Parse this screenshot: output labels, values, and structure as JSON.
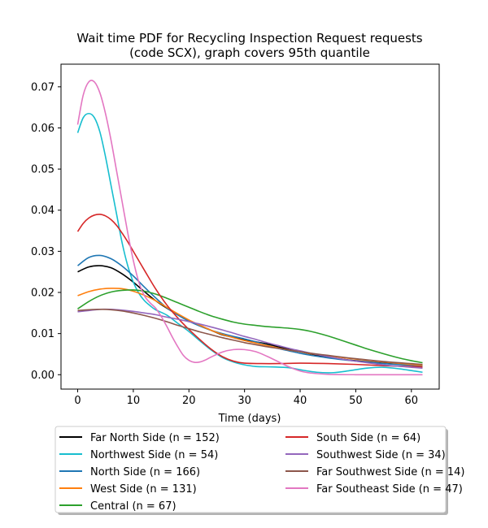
{
  "chart_data": {
    "type": "line",
    "title_lines": [
      "Wait time PDF for Recycling Inspection Request  requests",
      "(code SCX), graph covers 95th quantile"
    ],
    "xlabel": "Time (days)",
    "ylabel": "",
    "xlim": [
      -3,
      65
    ],
    "ylim": [
      -0.0035,
      0.0755
    ],
    "x_ticks": [
      0,
      10,
      20,
      30,
      40,
      50,
      60
    ],
    "x_tick_labels": [
      "0",
      "10",
      "20",
      "30",
      "40",
      "50",
      "60"
    ],
    "y_ticks": [
      0.0,
      0.01,
      0.02,
      0.03,
      0.04,
      0.05,
      0.06,
      0.07
    ],
    "y_tick_labels": [
      "0.00",
      "0.01",
      "0.02",
      "0.03",
      "0.04",
      "0.05",
      "0.06",
      "0.07"
    ],
    "grid": false,
    "legend": {
      "placement": "below",
      "columns": 2
    },
    "series": [
      {
        "name": "Far North Side (n = 152)",
        "color": "#000000",
        "points": [
          [
            0,
            0.025
          ],
          [
            2,
            0.0262
          ],
          [
            4,
            0.0265
          ],
          [
            6,
            0.026
          ],
          [
            8,
            0.0245
          ],
          [
            10,
            0.0225
          ],
          [
            12,
            0.0202
          ],
          [
            14,
            0.018
          ],
          [
            16,
            0.0162
          ],
          [
            18,
            0.0146
          ],
          [
            20,
            0.0132
          ],
          [
            22,
            0.012
          ],
          [
            24,
            0.0108
          ],
          [
            26,
            0.0097
          ],
          [
            28,
            0.0091
          ],
          [
            30,
            0.0085
          ],
          [
            32,
            0.008
          ],
          [
            34,
            0.0075
          ],
          [
            36,
            0.0068
          ],
          [
            38,
            0.0062
          ],
          [
            40,
            0.0056
          ],
          [
            42,
            0.005
          ],
          [
            45,
            0.0043
          ],
          [
            48,
            0.0037
          ],
          [
            50,
            0.0034
          ],
          [
            55,
            0.0028
          ],
          [
            60,
            0.0024
          ],
          [
            62,
            0.0022
          ]
        ]
      },
      {
        "name": "Northwest Side (n = 54)",
        "color": "#17becf",
        "points": [
          [
            0,
            0.0588
          ],
          [
            1,
            0.0625
          ],
          [
            2,
            0.0635
          ],
          [
            3,
            0.0625
          ],
          [
            4,
            0.059
          ],
          [
            5,
            0.053
          ],
          [
            6,
            0.046
          ],
          [
            7,
            0.039
          ],
          [
            8,
            0.032
          ],
          [
            9,
            0.0265
          ],
          [
            10,
            0.0225
          ],
          [
            11,
            0.0198
          ],
          [
            12,
            0.018
          ],
          [
            13,
            0.0168
          ],
          [
            14,
            0.0158
          ],
          [
            16,
            0.0145
          ],
          [
            18,
            0.0125
          ],
          [
            20,
            0.0105
          ],
          [
            22,
            0.0082
          ],
          [
            24,
            0.006
          ],
          [
            26,
            0.0042
          ],
          [
            28,
            0.0031
          ],
          [
            30,
            0.0024
          ],
          [
            32,
            0.002
          ],
          [
            35,
            0.0019
          ],
          [
            38,
            0.0017
          ],
          [
            40,
            0.0012
          ],
          [
            43,
            0.0006
          ],
          [
            46,
            0.0005
          ],
          [
            49,
            0.001
          ],
          [
            52,
            0.0016
          ],
          [
            55,
            0.0018
          ],
          [
            58,
            0.0014
          ],
          [
            60,
            0.001
          ],
          [
            62,
            0.0006
          ]
        ]
      },
      {
        "name": "North Side (n = 166)",
        "color": "#1f77b4",
        "points": [
          [
            0,
            0.0265
          ],
          [
            2,
            0.0285
          ],
          [
            4,
            0.029
          ],
          [
            6,
            0.0282
          ],
          [
            8,
            0.0264
          ],
          [
            10,
            0.024
          ],
          [
            12,
            0.0213
          ],
          [
            14,
            0.0187
          ],
          [
            16,
            0.0163
          ],
          [
            18,
            0.0145
          ],
          [
            20,
            0.013
          ],
          [
            22,
            0.0118
          ],
          [
            24,
            0.0108
          ],
          [
            26,
            0.01
          ],
          [
            28,
            0.0093
          ],
          [
            30,
            0.0087
          ],
          [
            32,
            0.008
          ],
          [
            34,
            0.0072
          ],
          [
            36,
            0.0064
          ],
          [
            38,
            0.0058
          ],
          [
            40,
            0.0052
          ],
          [
            42,
            0.0047
          ],
          [
            45,
            0.0041
          ],
          [
            48,
            0.0036
          ],
          [
            50,
            0.0033
          ],
          [
            55,
            0.0027
          ],
          [
            60,
            0.0023
          ],
          [
            62,
            0.0021
          ]
        ]
      },
      {
        "name": "West Side (n = 131)",
        "color": "#ff7f0e",
        "points": [
          [
            0,
            0.0192
          ],
          [
            2,
            0.0202
          ],
          [
            4,
            0.0208
          ],
          [
            6,
            0.021
          ],
          [
            8,
            0.0209
          ],
          [
            10,
            0.0203
          ],
          [
            12,
            0.0193
          ],
          [
            14,
            0.018
          ],
          [
            16,
            0.0164
          ],
          [
            18,
            0.0148
          ],
          [
            20,
            0.0133
          ],
          [
            22,
            0.012
          ],
          [
            24,
            0.0108
          ],
          [
            26,
            0.0098
          ],
          [
            28,
            0.009
          ],
          [
            30,
            0.0083
          ],
          [
            32,
            0.0077
          ],
          [
            34,
            0.0071
          ],
          [
            36,
            0.0065
          ],
          [
            38,
            0.006
          ],
          [
            40,
            0.0056
          ],
          [
            42,
            0.0051
          ],
          [
            45,
            0.0046
          ],
          [
            48,
            0.0041
          ],
          [
            50,
            0.0038
          ],
          [
            55,
            0.0031
          ],
          [
            60,
            0.0025
          ],
          [
            62,
            0.0023
          ]
        ]
      },
      {
        "name": "Central (n = 67)",
        "color": "#2ca02c",
        "points": [
          [
            0,
            0.016
          ],
          [
            2,
            0.0178
          ],
          [
            4,
            0.0192
          ],
          [
            6,
            0.0201
          ],
          [
            8,
            0.0205
          ],
          [
            10,
            0.0206
          ],
          [
            12,
            0.0203
          ],
          [
            14,
            0.0196
          ],
          [
            16,
            0.0186
          ],
          [
            18,
            0.0175
          ],
          [
            20,
            0.0164
          ],
          [
            22,
            0.0153
          ],
          [
            24,
            0.0143
          ],
          [
            26,
            0.0135
          ],
          [
            28,
            0.0128
          ],
          [
            30,
            0.0123
          ],
          [
            32,
            0.012
          ],
          [
            34,
            0.0117
          ],
          [
            36,
            0.0115
          ],
          [
            38,
            0.0113
          ],
          [
            40,
            0.011
          ],
          [
            42,
            0.0105
          ],
          [
            44,
            0.0098
          ],
          [
            46,
            0.009
          ],
          [
            48,
            0.0081
          ],
          [
            50,
            0.0072
          ],
          [
            52,
            0.0063
          ],
          [
            55,
            0.0051
          ],
          [
            58,
            0.004
          ],
          [
            60,
            0.0034
          ],
          [
            62,
            0.0029
          ]
        ]
      },
      {
        "name": "South Side (n = 64)",
        "color": "#d62728",
        "points": [
          [
            0,
            0.0348
          ],
          [
            1,
            0.0368
          ],
          [
            2,
            0.0381
          ],
          [
            3,
            0.0388
          ],
          [
            4,
            0.039
          ],
          [
            5,
            0.0386
          ],
          [
            6,
            0.0377
          ],
          [
            7,
            0.0363
          ],
          [
            8,
            0.0344
          ],
          [
            9,
            0.0323
          ],
          [
            10,
            0.03
          ],
          [
            12,
            0.0254
          ],
          [
            14,
            0.0209
          ],
          [
            16,
            0.017
          ],
          [
            18,
            0.0138
          ],
          [
            20,
            0.011
          ],
          [
            22,
            0.0085
          ],
          [
            24,
            0.0062
          ],
          [
            26,
            0.0044
          ],
          [
            28,
            0.0033
          ],
          [
            30,
            0.0028
          ],
          [
            33,
            0.0027
          ],
          [
            36,
            0.0027
          ],
          [
            40,
            0.0028
          ],
          [
            45,
            0.0027
          ],
          [
            50,
            0.0025
          ],
          [
            55,
            0.0022
          ],
          [
            60,
            0.002
          ],
          [
            62,
            0.0019
          ]
        ]
      },
      {
        "name": "Southwest Side (n = 34)",
        "color": "#9467bd",
        "points": [
          [
            0,
            0.0153
          ],
          [
            2,
            0.0156
          ],
          [
            4,
            0.0159
          ],
          [
            6,
            0.0159
          ],
          [
            8,
            0.0157
          ],
          [
            10,
            0.0154
          ],
          [
            12,
            0.015
          ],
          [
            14,
            0.0146
          ],
          [
            16,
            0.014
          ],
          [
            18,
            0.0135
          ],
          [
            20,
            0.0129
          ],
          [
            22,
            0.0123
          ],
          [
            24,
            0.0116
          ],
          [
            26,
            0.0109
          ],
          [
            28,
            0.0101
          ],
          [
            30,
            0.0093
          ],
          [
            32,
            0.0086
          ],
          [
            34,
            0.0078
          ],
          [
            36,
            0.0071
          ],
          [
            38,
            0.0064
          ],
          [
            40,
            0.0058
          ],
          [
            42,
            0.0052
          ],
          [
            45,
            0.0044
          ],
          [
            48,
            0.0037
          ],
          [
            50,
            0.0033
          ],
          [
            55,
            0.0024
          ],
          [
            60,
            0.0018
          ],
          [
            62,
            0.0016
          ]
        ]
      },
      {
        "name": "Far Southwest Side (n = 14)",
        "color": "#8c564b",
        "points": [
          [
            0,
            0.0156
          ],
          [
            2,
            0.0158
          ],
          [
            4,
            0.0159
          ],
          [
            6,
            0.0158
          ],
          [
            8,
            0.0155
          ],
          [
            10,
            0.015
          ],
          [
            12,
            0.0144
          ],
          [
            14,
            0.0137
          ],
          [
            16,
            0.0129
          ],
          [
            18,
            0.012
          ],
          [
            20,
            0.0112
          ],
          [
            22,
            0.0104
          ],
          [
            24,
            0.0097
          ],
          [
            26,
            0.009
          ],
          [
            28,
            0.0084
          ],
          [
            30,
            0.0078
          ],
          [
            32,
            0.0073
          ],
          [
            34,
            0.0068
          ],
          [
            36,
            0.0064
          ],
          [
            38,
            0.006
          ],
          [
            40,
            0.0056
          ],
          [
            42,
            0.0052
          ],
          [
            45,
            0.0047
          ],
          [
            48,
            0.0042
          ],
          [
            50,
            0.0039
          ],
          [
            55,
            0.0032
          ],
          [
            60,
            0.0027
          ],
          [
            62,
            0.0025
          ]
        ]
      },
      {
        "name": "Far Southeast Side (n = 47)",
        "color": "#e377c2",
        "points": [
          [
            0,
            0.0608
          ],
          [
            1,
            0.068
          ],
          [
            2,
            0.0712
          ],
          [
            3,
            0.0712
          ],
          [
            4,
            0.0685
          ],
          [
            5,
            0.0635
          ],
          [
            6,
            0.057
          ],
          [
            7,
            0.0495
          ],
          [
            8,
            0.042
          ],
          [
            9,
            0.0345
          ],
          [
            10,
            0.0278
          ],
          [
            11,
            0.0225
          ],
          [
            12,
            0.0192
          ],
          [
            13,
            0.0175
          ],
          [
            14,
            0.0162
          ],
          [
            15,
            0.0142
          ],
          [
            16,
            0.0118
          ],
          [
            17,
            0.0092
          ],
          [
            18,
            0.0068
          ],
          [
            19,
            0.0047
          ],
          [
            20,
            0.0035
          ],
          [
            21,
            0.003
          ],
          [
            22,
            0.0031
          ],
          [
            23,
            0.0036
          ],
          [
            24,
            0.0043
          ],
          [
            26,
            0.0055
          ],
          [
            28,
            0.0061
          ],
          [
            30,
            0.0061
          ],
          [
            32,
            0.0056
          ],
          [
            34,
            0.0045
          ],
          [
            36,
            0.0032
          ],
          [
            38,
            0.0019
          ],
          [
            40,
            0.0009
          ],
          [
            42,
            0.0004
          ],
          [
            45,
            0.0001
          ],
          [
            50,
            0.0
          ],
          [
            55,
            0.0
          ],
          [
            60,
            0.0
          ],
          [
            62,
            0.0
          ]
        ]
      }
    ]
  }
}
